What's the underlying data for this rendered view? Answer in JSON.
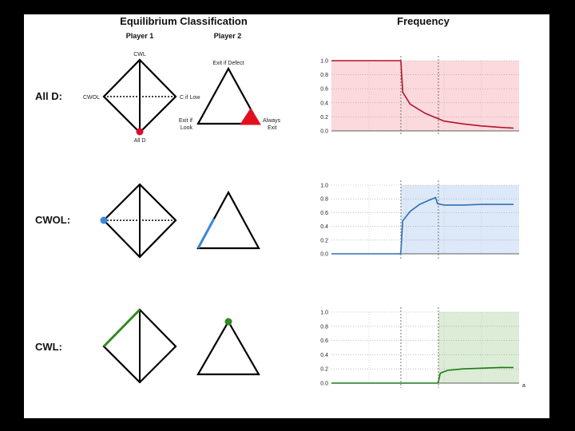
{
  "headers": {
    "classification": "Equilibrium Classification",
    "frequency": "Frequency",
    "player1": "Player 1",
    "player2": "Player 2"
  },
  "rows": [
    {
      "label": "All D:",
      "color": "#c8102e"
    },
    {
      "label": "CWOL:",
      "color": "#3a87d8"
    },
    {
      "label": "CWL:",
      "color": "#2e8b1e"
    }
  ],
  "diamond_labels": {
    "top": "CWL",
    "left": "CWOL",
    "right": "C if Low",
    "bottom": "All D"
  },
  "triangle_labels": {
    "top": "Exit if Defect",
    "left_line1": "Exit if",
    "left_line2": "Look",
    "right_line1": "Always",
    "right_line2": "Exit"
  },
  "x_axis_label": "a",
  "chart_data": [
    {
      "type": "line",
      "row": "All D",
      "ylim": [
        0,
        1.0
      ],
      "yticks": [
        "1.0",
        "0.8",
        "0.6",
        "0.4",
        "0.2",
        "0.0"
      ],
      "line_color": "#b5122b",
      "shade_color": "#fbd9dc",
      "shade_x": [
        0,
        1
      ],
      "vlines": [
        0.37,
        0.57
      ],
      "x": [
        0,
        0.36,
        0.37,
        0.38,
        0.42,
        0.5,
        0.6,
        0.7,
        0.8,
        0.9,
        0.97
      ],
      "y": [
        1.0,
        1.0,
        1.0,
        0.55,
        0.38,
        0.25,
        0.14,
        0.1,
        0.07,
        0.05,
        0.04
      ]
    },
    {
      "type": "line",
      "row": "CWOL",
      "ylim": [
        0,
        1.0
      ],
      "yticks": [
        "1.0",
        "0.8",
        "0.6",
        "0.4",
        "0.2",
        "0.0"
      ],
      "line_color": "#2f6fb5",
      "shade_color": "#dde9f8",
      "shade_x": [
        0.37,
        1
      ],
      "vlines": [
        0.37,
        0.57
      ],
      "x": [
        0,
        0.365,
        0.37,
        0.38,
        0.42,
        0.47,
        0.52,
        0.555,
        0.565,
        0.6,
        0.7,
        0.8,
        0.9,
        0.97
      ],
      "y": [
        0.0,
        0.0,
        0.02,
        0.48,
        0.62,
        0.72,
        0.78,
        0.82,
        0.73,
        0.71,
        0.71,
        0.72,
        0.72,
        0.72
      ]
    },
    {
      "type": "line",
      "row": "CWL",
      "ylim": [
        0,
        1.0
      ],
      "yticks": [
        "1.0",
        "0.8",
        "0.6",
        "0.4",
        "0.2",
        "0.0"
      ],
      "line_color": "#1e7a14",
      "shade_color": "#dcecd6",
      "shade_x": [
        0.57,
        1
      ],
      "vlines": [
        0.37,
        0.57
      ],
      "x": [
        0,
        0.565,
        0.57,
        0.58,
        0.62,
        0.7,
        0.8,
        0.9,
        0.97
      ],
      "y": [
        0.0,
        0.0,
        0.02,
        0.14,
        0.18,
        0.2,
        0.21,
        0.22,
        0.22
      ]
    }
  ]
}
